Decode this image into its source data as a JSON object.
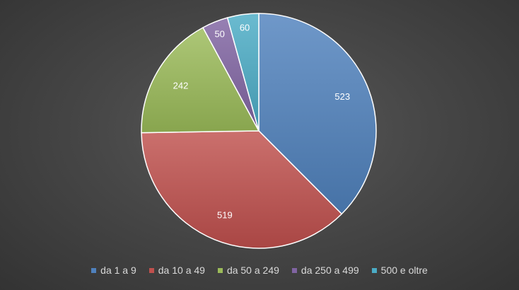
{
  "chart_data": {
    "type": "pie",
    "title": "",
    "categories": [
      "da 1 a 9",
      "da 10 a 49",
      "da 50 a 249",
      "da 250 a 499",
      "500 e oltre"
    ],
    "values": [
      523,
      519,
      242,
      50,
      60
    ],
    "value_labels": [
      "523",
      "519",
      "242",
      "50",
      "60"
    ],
    "colors": [
      "#4f81bd",
      "#c0504d",
      "#9bbb59",
      "#8064a2",
      "#4bacc6"
    ],
    "legend_position": "bottom",
    "start_angle": "12 o'clock, clockwise"
  }
}
